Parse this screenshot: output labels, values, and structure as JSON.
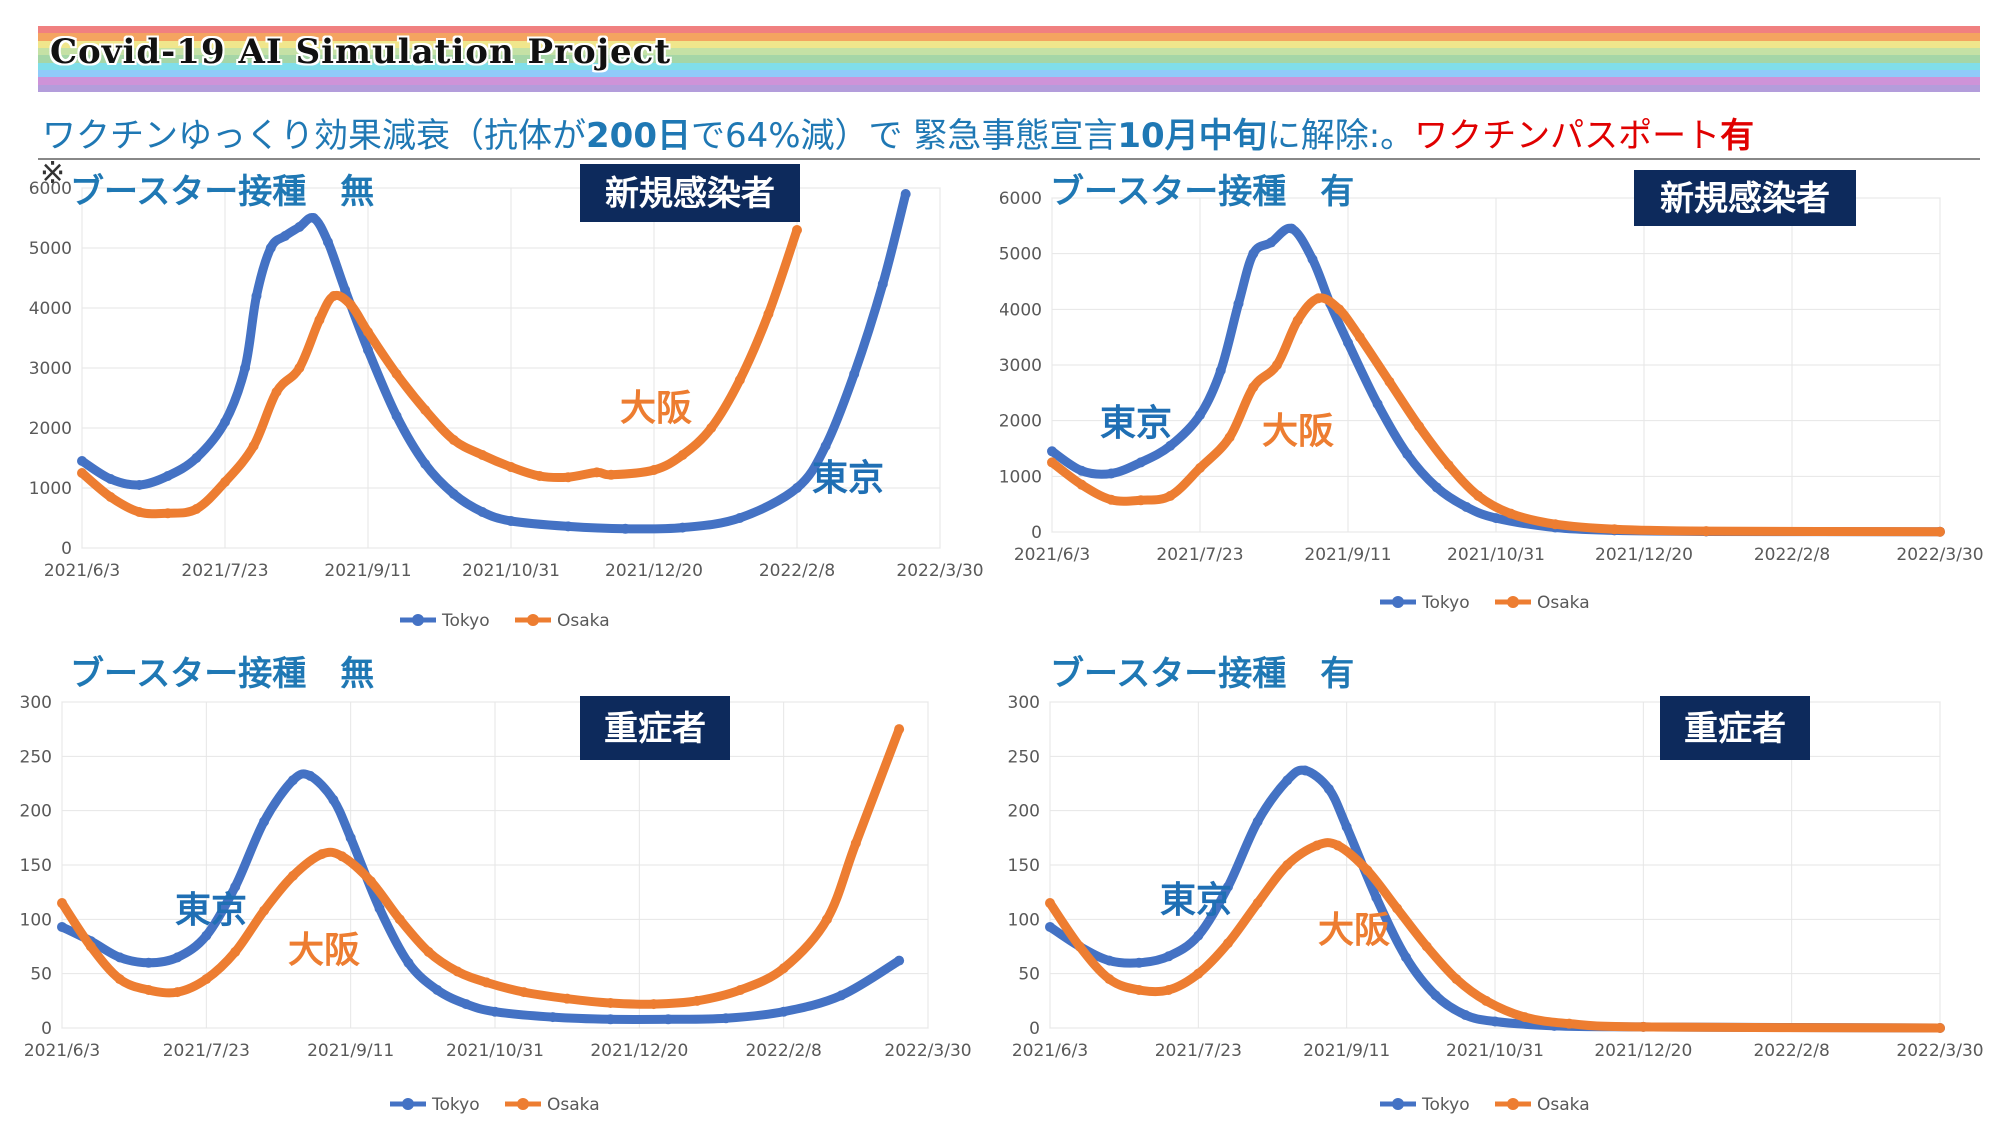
{
  "banner": {
    "title": "Covid-19 AI Simulation Project",
    "stripe_colors": [
      "#f08080",
      "#f4a460",
      "#f0e68c",
      "#c5e1a5",
      "#a5d6a7",
      "#80deea",
      "#90caf9",
      "#ce93d8",
      "#b39ddb"
    ]
  },
  "subtitle": {
    "part1": "ワクチンゆっくり効果減衰（抗体が",
    "bold1": "200日",
    "part2": "で64%減）で 緊急事態宣言",
    "bold2": "10月中旬",
    "part3": "に解除:。",
    "red_text": "ワクチンパスポート",
    "red_bold": "有"
  },
  "note_mark": "※",
  "colors": {
    "tokyo": "#4472c4",
    "osaka": "#ed7d31",
    "heading": "#1f78b4",
    "label_bg": "#0d2a5c"
  },
  "chart_data": [
    {
      "type": "line",
      "heading": "ブースター接種　無",
      "label_box": "新規感染者",
      "x_ticks": [
        "2021/6/3",
        "2021/7/23",
        "2021/9/11",
        "2021/10/31",
        "2021/12/20",
        "2022/2/8",
        "2022/3/30"
      ],
      "x_range": [
        "2021-06-03",
        "2022-03-30"
      ],
      "y_ticks": [
        "0",
        "1000",
        "2000",
        "3000",
        "4000",
        "5000",
        "6000"
      ],
      "ylim": [
        0,
        6000
      ],
      "legend_position": "bottom",
      "annotations": [
        {
          "text": "大阪",
          "color": "osaka"
        },
        {
          "text": "東京",
          "color": "tokyo"
        }
      ],
      "series": [
        {
          "name": "Tokyo",
          "points": [
            [
              "2021-06-03",
              1450
            ],
            [
              "2021-06-13",
              1150
            ],
            [
              "2021-06-23",
              1050
            ],
            [
              "2021-07-03",
              1200
            ],
            [
              "2021-07-13",
              1500
            ],
            [
              "2021-07-23",
              2100
            ],
            [
              "2021-07-30",
              3000
            ],
            [
              "2021-08-03",
              4200
            ],
            [
              "2021-08-08",
              5000
            ],
            [
              "2021-08-13",
              5200
            ],
            [
              "2021-08-18",
              5350
            ],
            [
              "2021-08-23",
              5500
            ],
            [
              "2021-08-28",
              5100
            ],
            [
              "2021-09-03",
              4300
            ],
            [
              "2021-09-11",
              3300
            ],
            [
              "2021-09-21",
              2200
            ],
            [
              "2021-10-01",
              1400
            ],
            [
              "2021-10-11",
              900
            ],
            [
              "2021-10-21",
              600
            ],
            [
              "2021-10-31",
              450
            ],
            [
              "2021-11-20",
              360
            ],
            [
              "2021-12-10",
              320
            ],
            [
              "2021-12-30",
              340
            ],
            [
              "2022-01-19",
              500
            ],
            [
              "2022-02-08",
              1000
            ],
            [
              "2022-02-18",
              1700
            ],
            [
              "2022-02-28",
              2900
            ],
            [
              "2022-03-10",
              4400
            ],
            [
              "2022-03-18",
              5900
            ]
          ]
        },
        {
          "name": "Osaka",
          "points": [
            [
              "2021-06-03",
              1250
            ],
            [
              "2021-06-13",
              850
            ],
            [
              "2021-06-23",
              600
            ],
            [
              "2021-07-03",
              580
            ],
            [
              "2021-07-13",
              650
            ],
            [
              "2021-07-23",
              1100
            ],
            [
              "2021-08-02",
              1700
            ],
            [
              "2021-08-10",
              2600
            ],
            [
              "2021-08-18",
              3000
            ],
            [
              "2021-08-25",
              3800
            ],
            [
              "2021-08-30",
              4200
            ],
            [
              "2021-09-05",
              4050
            ],
            [
              "2021-09-11",
              3600
            ],
            [
              "2021-09-21",
              2900
            ],
            [
              "2021-10-01",
              2300
            ],
            [
              "2021-10-11",
              1800
            ],
            [
              "2021-10-21",
              1550
            ],
            [
              "2021-10-31",
              1350
            ],
            [
              "2021-11-10",
              1200
            ],
            [
              "2021-11-20",
              1180
            ],
            [
              "2021-11-30",
              1260
            ],
            [
              "2021-12-05",
              1220
            ],
            [
              "2021-12-20",
              1300
            ],
            [
              "2021-12-30",
              1550
            ],
            [
              "2022-01-09",
              2000
            ],
            [
              "2022-01-19",
              2800
            ],
            [
              "2022-01-29",
              3900
            ],
            [
              "2022-02-08",
              5300
            ]
          ]
        }
      ]
    },
    {
      "type": "line",
      "heading": "ブースター接種　有",
      "label_box": "新規感染者",
      "x_ticks": [
        "2021/6/3",
        "2021/7/23",
        "2021/9/11",
        "2021/10/31",
        "2021/12/20",
        "2022/2/8",
        "2022/3/30"
      ],
      "x_range": [
        "2021-06-03",
        "2022-03-30"
      ],
      "y_ticks": [
        "0",
        "1000",
        "2000",
        "3000",
        "4000",
        "5000",
        "6000"
      ],
      "ylim": [
        0,
        6000
      ],
      "legend_position": "bottom",
      "annotations": [
        {
          "text": "東京",
          "color": "tokyo"
        },
        {
          "text": "大阪",
          "color": "osaka"
        }
      ],
      "series": [
        {
          "name": "Tokyo",
          "points": [
            [
              "2021-06-03",
              1450
            ],
            [
              "2021-06-13",
              1100
            ],
            [
              "2021-06-23",
              1050
            ],
            [
              "2021-07-03",
              1250
            ],
            [
              "2021-07-13",
              1550
            ],
            [
              "2021-07-23",
              2100
            ],
            [
              "2021-07-30",
              2900
            ],
            [
              "2021-08-05",
              4100
            ],
            [
              "2021-08-10",
              5000
            ],
            [
              "2021-08-16",
              5200
            ],
            [
              "2021-08-23",
              5450
            ],
            [
              "2021-08-30",
              4900
            ],
            [
              "2021-09-05",
              4100
            ],
            [
              "2021-09-11",
              3400
            ],
            [
              "2021-09-21",
              2300
            ],
            [
              "2021-10-01",
              1400
            ],
            [
              "2021-10-11",
              800
            ],
            [
              "2021-10-21",
              450
            ],
            [
              "2021-10-31",
              250
            ],
            [
              "2021-11-20",
              80
            ],
            [
              "2021-12-10",
              30
            ],
            [
              "2022-01-10",
              10
            ],
            [
              "2022-03-30",
              5
            ]
          ]
        },
        {
          "name": "Osaka",
          "points": [
            [
              "2021-06-03",
              1250
            ],
            [
              "2021-06-13",
              850
            ],
            [
              "2021-06-23",
              580
            ],
            [
              "2021-07-03",
              570
            ],
            [
              "2021-07-13",
              650
            ],
            [
              "2021-07-23",
              1150
            ],
            [
              "2021-08-02",
              1700
            ],
            [
              "2021-08-10",
              2600
            ],
            [
              "2021-08-18",
              3000
            ],
            [
              "2021-08-25",
              3800
            ],
            [
              "2021-09-01",
              4200
            ],
            [
              "2021-09-08",
              4000
            ],
            [
              "2021-09-15",
              3500
            ],
            [
              "2021-09-25",
              2700
            ],
            [
              "2021-10-05",
              1900
            ],
            [
              "2021-10-15",
              1200
            ],
            [
              "2021-10-25",
              650
            ],
            [
              "2021-11-05",
              330
            ],
            [
              "2021-11-20",
              140
            ],
            [
              "2021-12-10",
              50
            ],
            [
              "2022-01-10",
              15
            ],
            [
              "2022-03-30",
              5
            ]
          ]
        }
      ]
    },
    {
      "type": "line",
      "heading": "ブースター接種　無",
      "label_box": "重症者",
      "x_ticks": [
        "2021/6/3",
        "2021/7/23",
        "2021/9/11",
        "2021/10/31",
        "2021/12/20",
        "2022/2/8",
        "2022/3/30"
      ],
      "x_range": [
        "2021-06-03",
        "2022-03-30"
      ],
      "y_ticks": [
        "0",
        "50",
        "100",
        "150",
        "200",
        "250",
        "300"
      ],
      "ylim": [
        0,
        300
      ],
      "legend_position": "bottom",
      "annotations": [
        {
          "text": "東京",
          "color": "tokyo"
        },
        {
          "text": "大阪",
          "color": "osaka"
        }
      ],
      "series": [
        {
          "name": "Tokyo",
          "points": [
            [
              "2021-06-03",
              93
            ],
            [
              "2021-06-13",
              80
            ],
            [
              "2021-06-23",
              65
            ],
            [
              "2021-07-03",
              60
            ],
            [
              "2021-07-13",
              65
            ],
            [
              "2021-07-23",
              85
            ],
            [
              "2021-08-02",
              130
            ],
            [
              "2021-08-12",
              190
            ],
            [
              "2021-08-22",
              228
            ],
            [
              "2021-08-28",
              232
            ],
            [
              "2021-09-05",
              210
            ],
            [
              "2021-09-11",
              175
            ],
            [
              "2021-09-21",
              110
            ],
            [
              "2021-10-01",
              60
            ],
            [
              "2021-10-11",
              35
            ],
            [
              "2021-10-21",
              22
            ],
            [
              "2021-10-31",
              15
            ],
            [
              "2021-11-20",
              10
            ],
            [
              "2021-12-10",
              8
            ],
            [
              "2021-12-30",
              8
            ],
            [
              "2022-01-19",
              9
            ],
            [
              "2022-02-08",
              15
            ],
            [
              "2022-02-28",
              30
            ],
            [
              "2022-03-20",
              62
            ]
          ]
        },
        {
          "name": "Osaka",
          "points": [
            [
              "2021-06-03",
              115
            ],
            [
              "2021-06-13",
              75
            ],
            [
              "2021-06-23",
              45
            ],
            [
              "2021-07-03",
              35
            ],
            [
              "2021-07-13",
              33
            ],
            [
              "2021-07-23",
              45
            ],
            [
              "2021-08-02",
              70
            ],
            [
              "2021-08-12",
              108
            ],
            [
              "2021-08-22",
              140
            ],
            [
              "2021-09-01",
              160
            ],
            [
              "2021-09-08",
              158
            ],
            [
              "2021-09-18",
              135
            ],
            [
              "2021-09-28",
              100
            ],
            [
              "2021-10-08",
              70
            ],
            [
              "2021-10-18",
              52
            ],
            [
              "2021-10-28",
              42
            ],
            [
              "2021-11-10",
              33
            ],
            [
              "2021-11-25",
              27
            ],
            [
              "2021-12-10",
              23
            ],
            [
              "2021-12-25",
              22
            ],
            [
              "2022-01-09",
              25
            ],
            [
              "2022-01-24",
              35
            ],
            [
              "2022-02-08",
              55
            ],
            [
              "2022-02-23",
              100
            ],
            [
              "2022-03-05",
              170
            ],
            [
              "2022-03-20",
              275
            ]
          ]
        }
      ]
    },
    {
      "type": "line",
      "heading": "ブースター接種　有",
      "label_box": "重症者",
      "x_ticks": [
        "2021/6/3",
        "2021/7/23",
        "2021/9/11",
        "2021/10/31",
        "2021/12/20",
        "2022/2/8",
        "2022/3/30"
      ],
      "x_range": [
        "2021-06-03",
        "2022-03-30"
      ],
      "y_ticks": [
        "0",
        "50",
        "100",
        "150",
        "200",
        "250",
        "300"
      ],
      "ylim": [
        0,
        300
      ],
      "legend_position": "bottom",
      "annotations": [
        {
          "text": "東京",
          "color": "tokyo"
        },
        {
          "text": "大阪",
          "color": "osaka"
        }
      ],
      "series": [
        {
          "name": "Tokyo",
          "points": [
            [
              "2021-06-03",
              93
            ],
            [
              "2021-06-13",
              75
            ],
            [
              "2021-06-23",
              62
            ],
            [
              "2021-07-03",
              60
            ],
            [
              "2021-07-13",
              66
            ],
            [
              "2021-07-23",
              85
            ],
            [
              "2021-08-02",
              130
            ],
            [
              "2021-08-12",
              190
            ],
            [
              "2021-08-22",
              228
            ],
            [
              "2021-08-28",
              237
            ],
            [
              "2021-09-05",
              220
            ],
            [
              "2021-09-11",
              185
            ],
            [
              "2021-09-21",
              120
            ],
            [
              "2021-10-01",
              65
            ],
            [
              "2021-10-11",
              30
            ],
            [
              "2021-10-21",
              12
            ],
            [
              "2021-10-31",
              6
            ],
            [
              "2021-11-20",
              2
            ],
            [
              "2021-12-20",
              1
            ],
            [
              "2022-03-30",
              0
            ]
          ]
        },
        {
          "name": "Osaka",
          "points": [
            [
              "2021-06-03",
              115
            ],
            [
              "2021-06-13",
              75
            ],
            [
              "2021-06-23",
              45
            ],
            [
              "2021-07-03",
              35
            ],
            [
              "2021-07-13",
              35
            ],
            [
              "2021-07-23",
              50
            ],
            [
              "2021-08-02",
              78
            ],
            [
              "2021-08-12",
              115
            ],
            [
              "2021-08-22",
              150
            ],
            [
              "2021-09-01",
              168
            ],
            [
              "2021-09-08",
              168
            ],
            [
              "2021-09-18",
              145
            ],
            [
              "2021-09-28",
              110
            ],
            [
              "2021-10-08",
              75
            ],
            [
              "2021-10-18",
              45
            ],
            [
              "2021-10-28",
              25
            ],
            [
              "2021-11-10",
              10
            ],
            [
              "2021-11-25",
              4
            ],
            [
              "2021-12-20",
              1
            ],
            [
              "2022-03-30",
              0
            ]
          ]
        }
      ]
    }
  ]
}
